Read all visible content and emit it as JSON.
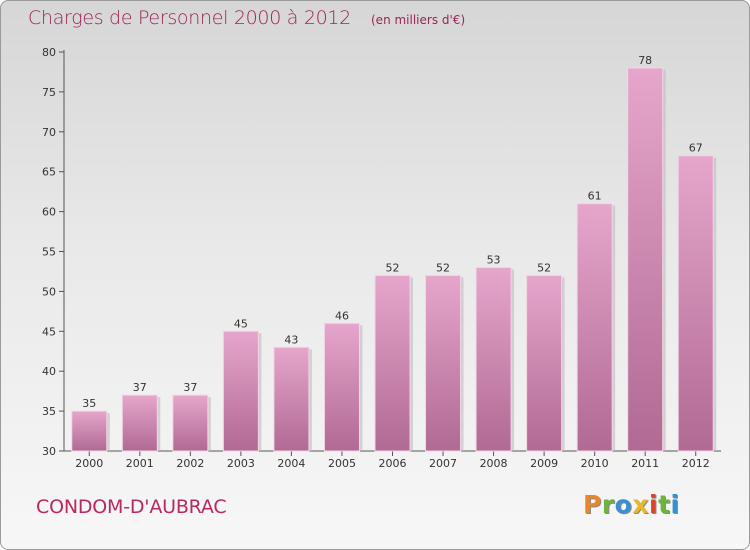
{
  "chart_data": {
    "type": "bar",
    "title": "Charges de Personnel 2000 à 2012",
    "subtitle": "(en milliers d'€)",
    "categories": [
      "2000",
      "2001",
      "2002",
      "2003",
      "2004",
      "2005",
      "2006",
      "2007",
      "2008",
      "2009",
      "2010",
      "2011",
      "2012"
    ],
    "values": [
      35,
      37,
      37,
      45,
      43,
      46,
      52,
      52,
      53,
      52,
      61,
      78,
      67
    ],
    "ylim": [
      30,
      80
    ],
    "yticks": [
      30,
      35,
      40,
      45,
      50,
      55,
      60,
      65,
      70,
      75,
      80
    ],
    "xlabel": "",
    "ylabel": "",
    "grid": false,
    "bar_color": "#d486b3",
    "bar_color_dark": "#b35f8f"
  },
  "footer": {
    "commune": "CONDOM-D'AUBRAC",
    "logo_letters": [
      {
        "char": "P",
        "color": "#e8862c"
      },
      {
        "char": "r",
        "color": "#6fb33e"
      },
      {
        "char": "o",
        "color": "#3a8fd0"
      },
      {
        "char": "x",
        "color": "#e8b82c"
      },
      {
        "char": "i",
        "color": "#d9452c"
      },
      {
        "char": "t",
        "color": "#6fb33e"
      },
      {
        "char": "i",
        "color": "#3a8fd0"
      }
    ]
  }
}
